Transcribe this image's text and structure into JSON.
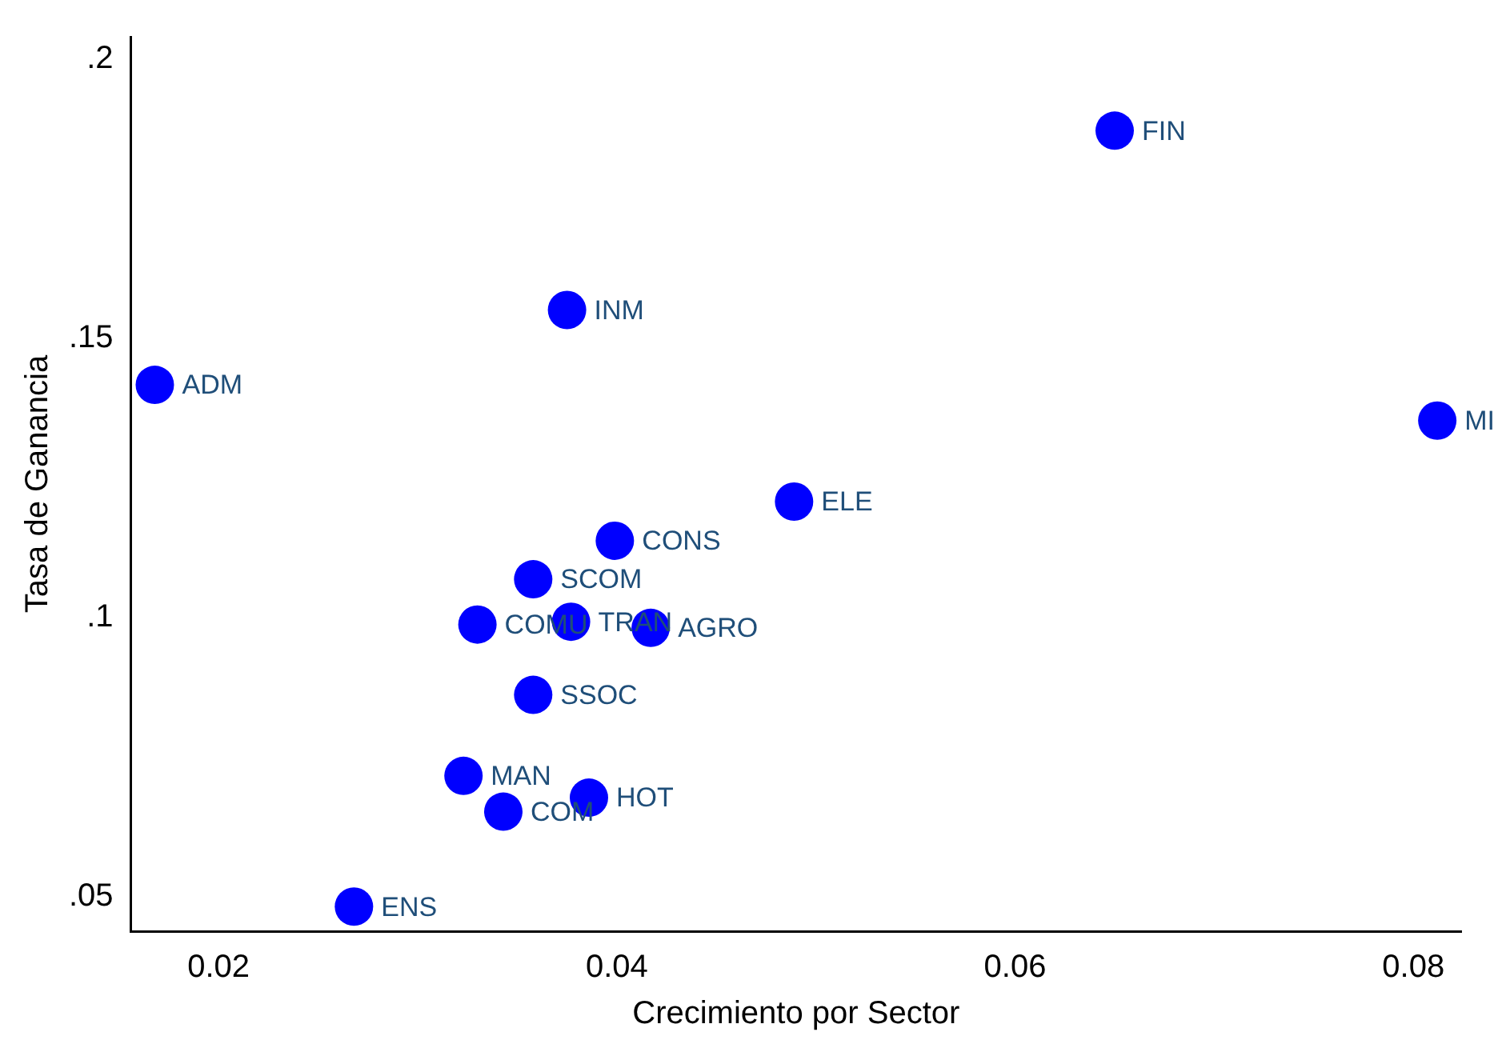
{
  "chart_data": {
    "type": "scatter",
    "xlabel": "Crecimiento por Sector",
    "ylabel": "Tasa de Ganancia",
    "x": [
      0.065,
      0.0375,
      0.0168,
      0.0812,
      0.0489,
      0.0399,
      0.0358,
      0.033,
      0.0377,
      0.0417,
      0.0358,
      0.0323,
      0.0386,
      0.0343,
      0.0268
    ],
    "series": [
      {
        "color": "#0000ff",
        "values": [
          0.1872,
          0.1551,
          0.1417,
          0.1353,
          0.1208,
          0.1138,
          0.1069,
          0.0988,
          0.0993,
          0.0982,
          0.0862,
          0.0717,
          0.0678,
          0.0653,
          0.0483
        ]
      }
    ],
    "annotations": [
      {
        "text": "FIN",
        "x": 0.065,
        "y": 0.1872
      },
      {
        "text": "INM",
        "x": 0.0375,
        "y": 0.1551
      },
      {
        "text": "ADM",
        "x": 0.0168,
        "y": 0.1417
      },
      {
        "text": "MI",
        "x": 0.0812,
        "y": 0.1353
      },
      {
        "text": "ELE",
        "x": 0.0489,
        "y": 0.1208
      },
      {
        "text": "CONS",
        "x": 0.0399,
        "y": 0.1138
      },
      {
        "text": "SCOM",
        "x": 0.0358,
        "y": 0.1069
      },
      {
        "text": "COMU",
        "x": 0.033,
        "y": 0.0988
      },
      {
        "text": "TRAN",
        "x": 0.0377,
        "y": 0.0993
      },
      {
        "text": "AGRO",
        "x": 0.0417,
        "y": 0.0982
      },
      {
        "text": "SSOC",
        "x": 0.0358,
        "y": 0.0862
      },
      {
        "text": "MAN",
        "x": 0.0323,
        "y": 0.0717
      },
      {
        "text": "HOT",
        "x": 0.0386,
        "y": 0.0678
      },
      {
        "text": "COM",
        "x": 0.0343,
        "y": 0.0653
      },
      {
        "text": "ENS",
        "x": 0.0268,
        "y": 0.0483
      }
    ],
    "xlim": [
      0.0156,
      0.0824
    ],
    "xticks": [
      0.02,
      0.04,
      0.06,
      0.08
    ],
    "ylim": [
      0.0439,
      0.204
    ],
    "yticks": [
      {
        "value": 0.05,
        "label": ".05"
      },
      {
        "value": 0.1,
        "label": ".1"
      },
      {
        "value": 0.15,
        "label": ".15"
      },
      {
        "value": 0.2,
        "label": ".2"
      }
    ],
    "marker": "circle",
    "grid": false,
    "legend": false
  }
}
